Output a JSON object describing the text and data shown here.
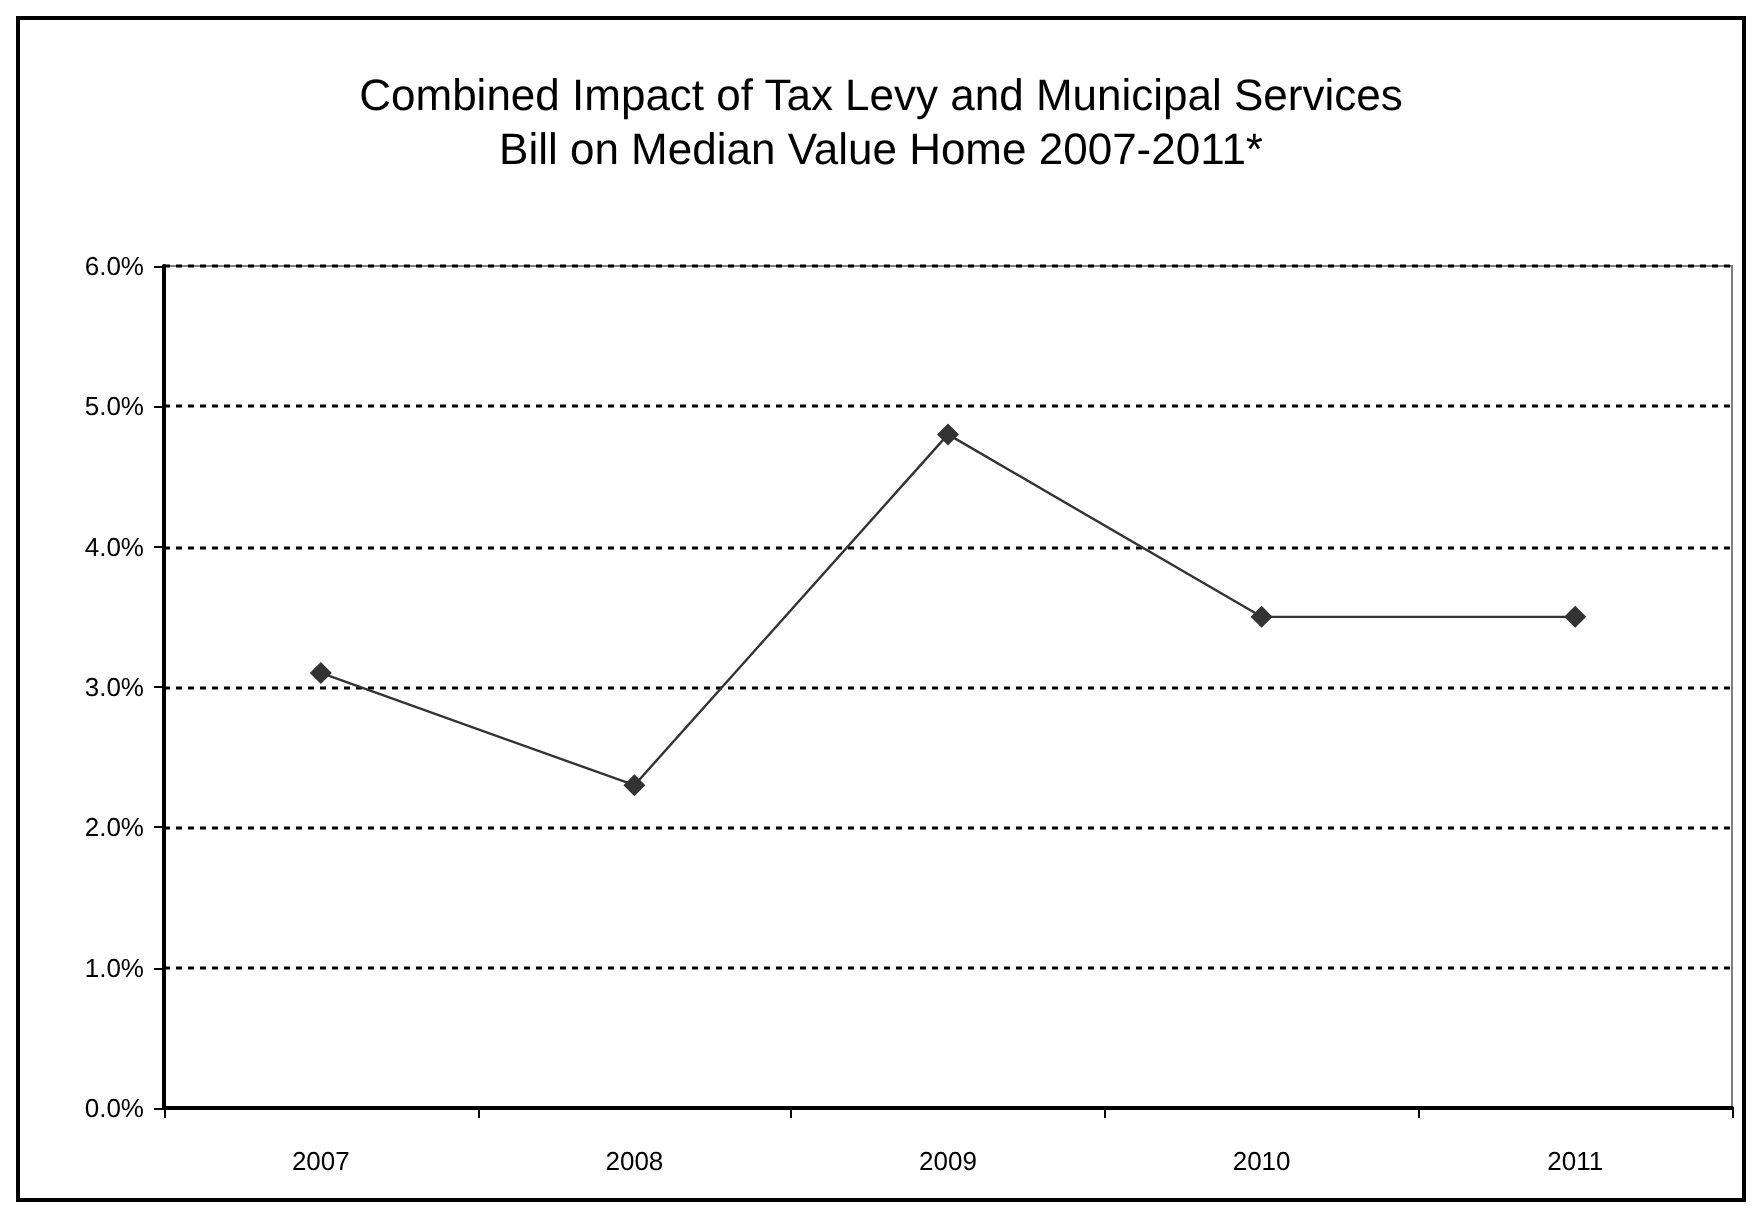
{
  "chart_data": {
    "type": "line",
    "title": "Combined Impact of Tax Levy and Municipal Services\nBill on Median Value Home 2007-2011*",
    "categories": [
      "2007",
      "2008",
      "2009",
      "2010",
      "2011"
    ],
    "series": [
      {
        "color": "#333333",
        "values": [
          3.1,
          2.3,
          4.8,
          3.5,
          3.5
        ]
      }
    ],
    "ylim": [
      0,
      6
    ],
    "yticks": [
      {
        "value": 0,
        "label": "0.0%"
      },
      {
        "value": 1,
        "label": "1.0%"
      },
      {
        "value": 2,
        "label": "2.0%"
      },
      {
        "value": 3,
        "label": "3.0%"
      },
      {
        "value": 4,
        "label": "4.0%"
      },
      {
        "value": 5,
        "label": "5.0%"
      },
      {
        "value": 6,
        "label": "6.0%"
      }
    ],
    "grid": "y",
    "marker": "diamond",
    "line_style": "solid"
  }
}
